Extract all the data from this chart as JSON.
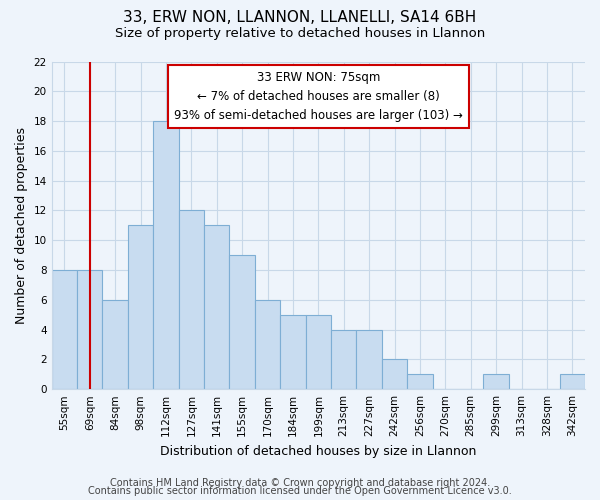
{
  "title": "33, ERW NON, LLANNON, LLANELLI, SA14 6BH",
  "subtitle": "Size of property relative to detached houses in Llannon",
  "xlabel": "Distribution of detached houses by size in Llannon",
  "ylabel": "Number of detached properties",
  "footer_line1": "Contains HM Land Registry data © Crown copyright and database right 2024.",
  "footer_line2": "Contains public sector information licensed under the Open Government Licence v3.0.",
  "bar_labels": [
    "55sqm",
    "69sqm",
    "84sqm",
    "98sqm",
    "112sqm",
    "127sqm",
    "141sqm",
    "155sqm",
    "170sqm",
    "184sqm",
    "199sqm",
    "213sqm",
    "227sqm",
    "242sqm",
    "256sqm",
    "270sqm",
    "285sqm",
    "299sqm",
    "313sqm",
    "328sqm",
    "342sqm"
  ],
  "bar_values": [
    8,
    8,
    6,
    11,
    18,
    12,
    11,
    9,
    6,
    5,
    5,
    4,
    4,
    2,
    1,
    0,
    0,
    1,
    0,
    0,
    1
  ],
  "bar_color": "#c8dcf0",
  "bar_edge_color": "#7eaed4",
  "vline_x_index": 1,
  "vline_color": "#cc0000",
  "annotation_line1": "33 ERW NON: 75sqm",
  "annotation_line2": "← 7% of detached houses are smaller (8)",
  "annotation_line3": "93% of semi-detached houses are larger (103) →",
  "annotation_box_edge_color": "#cc0000",
  "annotation_box_facecolor": "white",
  "ylim": [
    0,
    22
  ],
  "yticks": [
    0,
    2,
    4,
    6,
    8,
    10,
    12,
    14,
    16,
    18,
    20,
    22
  ],
  "grid_color": "#c8d8e8",
  "background_color": "#eef4fb",
  "plot_bg_color": "#eef4fb",
  "title_fontsize": 11,
  "subtitle_fontsize": 9.5,
  "axis_label_fontsize": 9,
  "tick_fontsize": 7.5,
  "footer_fontsize": 7
}
